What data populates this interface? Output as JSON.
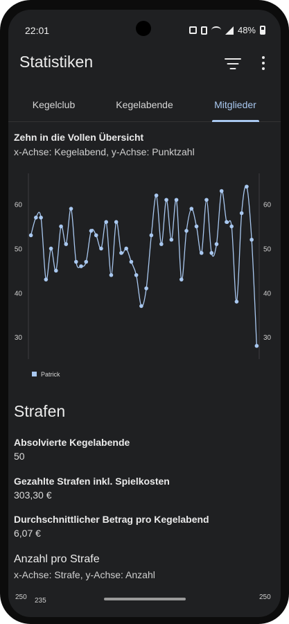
{
  "status_bar": {
    "time": "22:01",
    "battery": "48%",
    "icons": [
      "alarm-icon",
      "vibrate-icon",
      "wifi-icon",
      "signal-icon",
      "battery-icon"
    ]
  },
  "app_bar": {
    "title": "Statistiken",
    "actions": [
      "filter-icon",
      "more-vert-icon"
    ]
  },
  "tabs": [
    {
      "label": "Kegelclub",
      "active": false
    },
    {
      "label": "Kegelabende",
      "active": false
    },
    {
      "label": "Mitglieder",
      "active": true
    }
  ],
  "chart1": {
    "title": "Zehn in die Vollen Übersicht",
    "subtitle": "x-Achse: Kegelabend, y-Achse: Punktzahl"
  },
  "chart_data": {
    "type": "line",
    "title": "Zehn in die Vollen Übersicht",
    "xlabel": "Kegelabend",
    "ylabel": "Punktzahl",
    "ylim": [
      25,
      67
    ],
    "yticks": [
      30,
      40,
      50,
      60
    ],
    "grid": false,
    "legend": "bottom-left",
    "series_color": "#a9c8f0",
    "series": [
      {
        "name": "Patrick",
        "values": [
          53,
          57,
          57,
          43,
          50,
          45,
          55,
          51,
          59,
          47,
          46,
          47,
          54,
          53,
          50,
          56,
          44,
          56,
          49,
          50,
          47,
          44,
          37,
          41,
          53,
          62,
          51,
          61,
          52,
          61,
          43,
          54,
          59,
          55,
          49,
          61,
          49,
          51,
          63,
          56,
          55,
          38,
          58,
          64,
          52,
          28
        ]
      }
    ]
  },
  "strafen": {
    "heading": "Strafen",
    "items": [
      {
        "label": "Absolvierte Kegelabende",
        "value": "50"
      },
      {
        "label": "Gezahlte Strafen inkl. Spielkosten",
        "value": "303,30 €"
      },
      {
        "label": "Durchschnittlicher Betrag pro Kegelabend",
        "value": "6,07 €"
      }
    ]
  },
  "chart2": {
    "title": "Anzahl pro Strafe",
    "subtitle": "x-Achse: Strafe, y-Achse: Anzahl",
    "left_tick": "250",
    "bar_label": "235",
    "right_tick": "250"
  },
  "colors": {
    "background": "#1f2022",
    "accent": "#a9c8f0",
    "text": "#e6e6e6"
  }
}
